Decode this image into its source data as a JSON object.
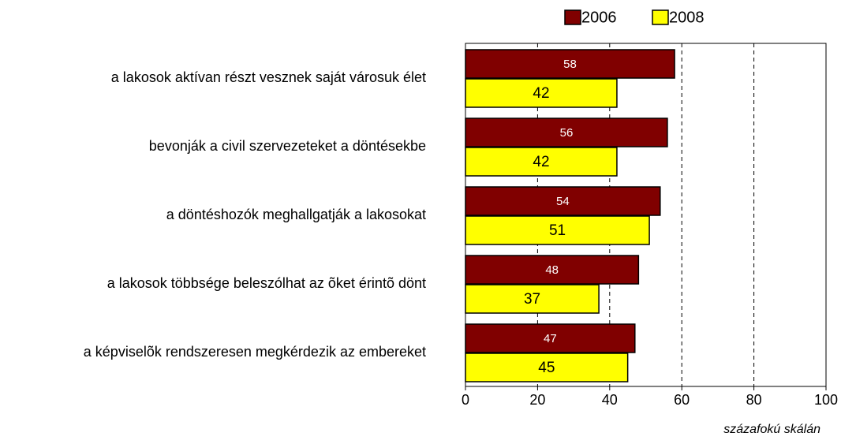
{
  "chart_data": {
    "type": "barh",
    "x_label": "százafokú skálán",
    "categories": [
      "a lakosok aktívan részt vesznek saját városuk élet",
      "bevonják a civil szervezeteket a döntésekbe",
      "a döntéshozók meghallgatják a lakosokat",
      "a lakosok többsége beleszólhat az õket érintõ dönt",
      "a képviselõk rendszeresen megkérdezik az embereket"
    ],
    "series": [
      {
        "name": "2006",
        "color": "#800000",
        "label_color": "#ffffff",
        "values": [
          58,
          56,
          54,
          48,
          47
        ]
      },
      {
        "name": "2008",
        "color": "#ffff00",
        "label_color": "#000000",
        "values": [
          42,
          42,
          51,
          37,
          45
        ]
      }
    ],
    "xlim": [
      0,
      100
    ],
    "xticks": [
      0,
      20,
      40,
      60,
      80,
      100
    ],
    "grid": true,
    "legend": "top"
  }
}
